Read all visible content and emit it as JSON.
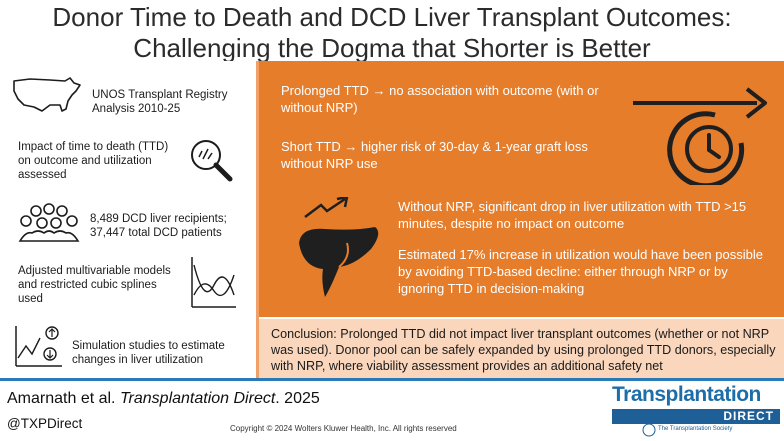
{
  "title": {
    "line1": "Donor Time to Death and DCD Liver Transplant Outcomes:",
    "line2": "Challenging the Dogma that Shorter is Better"
  },
  "left_panel": {
    "items": [
      {
        "icon": "us-map-icon",
        "text": "UNOS Transplant Registry Analysis 2010-25"
      },
      {
        "icon": "magnifier-icon",
        "text": "Impact of time to death (TTD) on outcome and utilization assessed"
      },
      {
        "icon": "people-group-icon",
        "text": "8,489 DCD liver recipients; 37,447 total DCD patients"
      },
      {
        "icon": "spline-curve-icon",
        "text": "Adjusted multivariable models and restricted cubic splines used"
      },
      {
        "icon": "simulation-chart-icon",
        "text": "Simulation studies to estimate changes in liver utilization"
      }
    ]
  },
  "findings": {
    "prolonged": "Prolonged TTD → no association with outcome (with or without NRP)",
    "short": "Short TTD → higher risk of 30-day & 1-year graft loss without NRP use",
    "utilization_drop": "Without NRP, significant drop in liver utilization with TTD >15 minutes, despite no impact on outcome",
    "utilization_increase": "Estimated 17% increase in utilization would have been possible by avoiding TTD-based decline: either through NRP or by ignoring TTD in decision-making",
    "icons": [
      "clock-arrow-icon",
      "liver-trend-icon"
    ]
  },
  "conclusion": "Conclusion: Prolonged TTD did not impact liver transplant outcomes (whether or not NRP was used). Donor pool can be safely expanded by using prolonged TTD donors, especially with NRP, where viability assessment provides an additional safety net",
  "footer": {
    "author": "Amarnath et al.",
    "journal": "Transplantation Direct",
    "year": ". 2025",
    "handle": "@TXPDirect",
    "copyright": "Copyright © 2024 Wolters Kluwer Health, Inc. All rights reserved",
    "brand_name": "Transplantation",
    "brand_bar": "DIRECT",
    "brand_sub": "The Transplantation Society"
  },
  "colors": {
    "orange_panel": "#e57d2b",
    "conclusion_bg": "#f9d6bc",
    "accent_blue": "#2a7ab9"
  }
}
